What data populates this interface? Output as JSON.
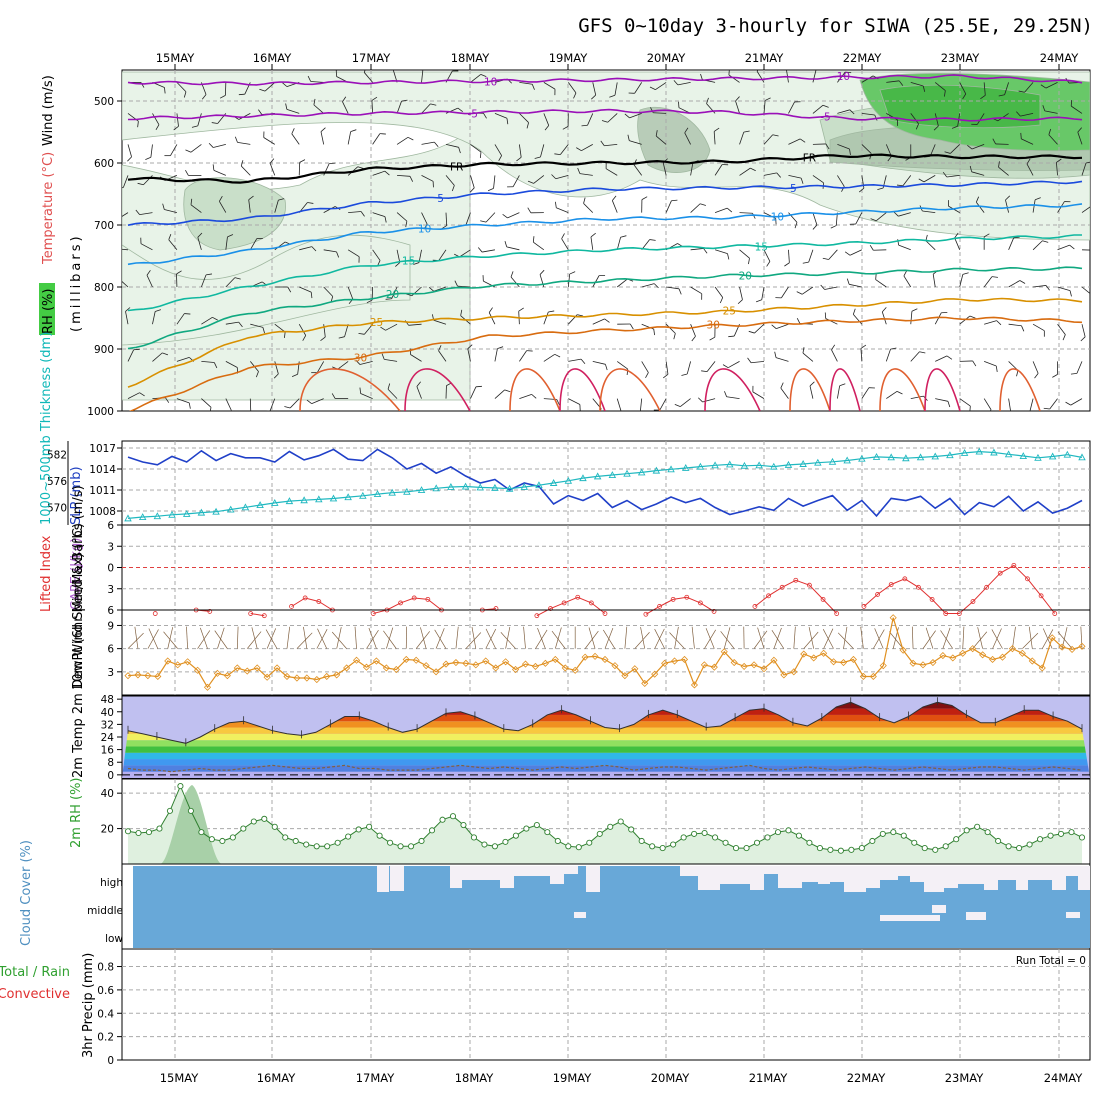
{
  "chart_data": {
    "type": "meteogram",
    "title": "GFS 0~10day 3-hourly for SIWA (25.5E, 29.25N)",
    "x_dates": [
      "15MAY",
      "16MAY",
      "17MAY",
      "18MAY",
      "19MAY",
      "20MAY",
      "21MAY",
      "22MAY",
      "23MAY",
      "24MAY"
    ],
    "panels": {
      "upper_air": {
        "ylabel_rh": "RH (%)",
        "ylabel_temp": "Temperature (°C)",
        "ylabel_wind": "Wind (m/s)",
        "ylabel_pressure": "(millibars)",
        "yticks": [
          500,
          600,
          700,
          800,
          900,
          1000
        ],
        "ylim": [
          450,
          1000
        ],
        "isotherms": [
          {
            "label": "-10",
            "color": "#9a10b8",
            "values": [
              470,
              472,
              470,
              468,
              466,
              464,
              462,
              460,
              470
            ]
          },
          {
            "label": "-5",
            "color": "#9a10b8",
            "values": [
              528,
              524,
              520,
              518,
              516,
              518,
              528,
              530,
              528
            ]
          },
          {
            "label": "FR",
            "color": "#000000",
            "values": [
              625,
              630,
              610,
              602,
              600,
              598,
              588,
              590,
              590
            ]
          },
          {
            "label": "5",
            "color": "#1a4adc",
            "values": [
              700,
              690,
              665,
              650,
              642,
              640,
              638,
              635,
              630
            ]
          },
          {
            "label": "10",
            "color": "#1a90e8",
            "values": [
              765,
              742,
              712,
              700,
              690,
              688,
              680,
              672,
              668
            ]
          },
          {
            "label": "15",
            "color": "#10b8a0",
            "values": [
              840,
              800,
              765,
              750,
              740,
              735,
              730,
              722,
              718
            ]
          },
          {
            "label": "20",
            "color": "#10a880",
            "values": [
              900,
              842,
              818,
              798,
              790,
              782,
              778,
              772,
              770
            ]
          },
          {
            "label": "25",
            "color": "#d89000",
            "values": [
              960,
              880,
              858,
              850,
              845,
              840,
              830,
              820,
              822
            ]
          },
          {
            "label": "30",
            "color": "#d86c10",
            "values": [
              1000,
              930,
              912,
              880,
              870,
              862,
              855,
              850,
              855
            ]
          }
        ]
      },
      "slp_thickness": {
        "ylabel_thk": "1000~500mb Thickness (dm)",
        "ylabel_slp": "SLP (mb)",
        "yticks_left": [
          570,
          576,
          582
        ],
        "yticks_right": [
          1008,
          1011,
          1014,
          1017
        ],
        "slp_values": [
          1015.7,
          1015,
          1014.6,
          1015.8,
          1015,
          1016.6,
          1015.2,
          1016.2,
          1015.6,
          1015.6,
          1015,
          1016.5,
          1015.3,
          1015.9,
          1016.8,
          1015.4,
          1015.2,
          1016.8,
          1015.6,
          1014,
          1014.8,
          1013.4,
          1014.3,
          1013,
          1012,
          1012.5,
          1011,
          1012,
          1011.5,
          1009,
          1010.2,
          1009.5,
          1010.5,
          1008.5,
          1009.5,
          1008.2,
          1009,
          1010,
          1009.2,
          1009.8,
          1008.5,
          1007.5,
          1008,
          1008.6,
          1008.1,
          1009.8,
          1008.7,
          1009.5,
          1010.2,
          1008.1,
          1009.5,
          1007.3,
          1009.8,
          1009.5,
          1010.1,
          1008.4,
          1009.8,
          1007.5,
          1009.2,
          1008.6,
          1010.1,
          1008,
          1009.3,
          1007.7,
          1008.4,
          1009.5
        ],
        "thk_values": [
          567.5,
          567.8,
          568,
          568.3,
          568.5,
          568.8,
          569,
          569.5,
          570,
          570.5,
          571,
          571.4,
          571.6,
          571.8,
          572,
          572.3,
          572.6,
          573,
          573.3,
          573.5,
          573.9,
          574.3,
          574.6,
          574.7,
          574.5,
          574.4,
          574.2,
          574.6,
          575,
          575.5,
          576,
          576.6,
          577,
          577.3,
          577.6,
          577.9,
          578.3,
          578.6,
          578.9,
          579.2,
          579.5,
          579.7,
          579.4,
          579.5,
          579.2,
          579.6,
          579.8,
          580.1,
          580.3,
          580.6,
          581,
          581.4,
          581.3,
          581.1,
          581.3,
          581.5,
          581.8,
          582.3,
          582.6,
          582.4,
          582,
          581.6,
          581.2,
          581.5,
          581.9,
          581.3
        ],
        "ylim_thk": [
          566,
          585
        ],
        "ylim_slp": [
          1006,
          1018
        ]
      },
      "lifted_cape": {
        "ylabel_li": "Lifted Index",
        "ylabel_cape": "CAPE (J/kg)",
        "yticks": [
          -6,
          -3,
          0,
          3,
          6
        ],
        "ylim": [
          -6,
          6
        ],
        "li_values": [
          7,
          7,
          6.5,
          7,
          7,
          6,
          6.2,
          7,
          7,
          6.5,
          6.8,
          7,
          5.5,
          4.3,
          4.8,
          6,
          7,
          7,
          6.5,
          6,
          5,
          4.3,
          4.5,
          6,
          7,
          7,
          6,
          5.8,
          7,
          7,
          6.8,
          5.8,
          5,
          4.2,
          5,
          6.5,
          7,
          7,
          6.6,
          5.5,
          4.5,
          4.2,
          5,
          6.2,
          7,
          7,
          5.5,
          4,
          2.8,
          1.8,
          2.5,
          4.5,
          6.5,
          7,
          5.5,
          3.8,
          2.4,
          1.6,
          2.8,
          4.5,
          6.5,
          6.5,
          4.8,
          2.8,
          0.8,
          -0.3,
          1.6,
          4,
          6.5,
          7,
          7
        ]
      },
      "wind10m": {
        "ylabel": "10m Wind Speed & Barbs (m/s)",
        "yticks": [
          3,
          6,
          9
        ],
        "ylim": [
          0,
          11
        ],
        "speed_values": [
          2.5,
          2.6,
          2.5,
          2.4,
          4.4,
          3.9,
          4.3,
          3.2,
          1,
          2.8,
          2.5,
          3.5,
          3.1,
          3.5,
          2.3,
          3.5,
          2.4,
          2.2,
          2.2,
          2,
          2.4,
          2.6,
          3.5,
          4.5,
          3.6,
          4.4,
          3.5,
          3.3,
          4.6,
          4.5,
          3.8,
          3,
          4,
          4.2,
          4.1,
          3.9,
          4.4,
          3.5,
          4.3,
          3.3,
          4,
          3.7,
          4.1,
          4.6,
          3.5,
          3.2,
          4.9,
          5,
          4.6,
          3.8,
          2.5,
          3.4,
          1.5,
          2.7,
          4.1,
          4.4,
          4.6,
          1.3,
          3.9,
          3.6,
          5.6,
          4.2,
          3.7,
          3.9,
          3.4,
          4.5,
          2.6,
          3,
          5.3,
          4.8,
          5.4,
          4.3,
          4.2,
          4.6,
          2.4,
          2.4,
          3.8,
          10,
          5.8,
          4.1,
          3.9,
          4.2,
          5.1,
          4.8,
          5.4,
          6,
          5.2,
          4.6,
          4.9,
          6,
          5.4,
          4.4,
          3.5,
          7.4,
          6.2,
          5.9,
          6.3
        ]
      },
      "temp2m": {
        "ylabel": "2m Temp 2m DewPt (6hr Min/Max) (°C)",
        "yticks": [
          0,
          8,
          16,
          24,
          32,
          40,
          48
        ],
        "ylim": [
          -2,
          50
        ],
        "temp_values": [
          28,
          26,
          24,
          22,
          20,
          24,
          29,
          33,
          34,
          31,
          28,
          26,
          25,
          27,
          32,
          37,
          37,
          34,
          30,
          27,
          29,
          34,
          39,
          40,
          37,
          33,
          29,
          28,
          32,
          38,
          41,
          38,
          34,
          30,
          29,
          32,
          38,
          41,
          38,
          34,
          30,
          31,
          36,
          41,
          42,
          38,
          33,
          31,
          36,
          43,
          46,
          42,
          36,
          33,
          37,
          43,
          46,
          44,
          38,
          33,
          33,
          37,
          41,
          41,
          37,
          34,
          29
        ],
        "dewpt_values": [
          4,
          3,
          3,
          2,
          3,
          4,
          3,
          3,
          4,
          5,
          6,
          5,
          4,
          4,
          5,
          6,
          4,
          4,
          3,
          3,
          3,
          4,
          5,
          6,
          5,
          4,
          5,
          4,
          3,
          4,
          5,
          4,
          5,
          6,
          5,
          3,
          4,
          5,
          5,
          4,
          3,
          4,
          5,
          6,
          4,
          3,
          4,
          5,
          4,
          3,
          4,
          5,
          4,
          3,
          4,
          5,
          4,
          3,
          4,
          5,
          5,
          4,
          3,
          4,
          5,
          4,
          3
        ]
      },
      "rh2m": {
        "ylabel": "2m RH (%)",
        "yticks": [
          20,
          40
        ],
        "ylim": [
          0,
          48
        ],
        "rh_values": [
          18.5,
          17.5,
          18,
          20,
          30,
          44,
          30,
          18,
          14,
          13,
          15,
          20,
          24,
          25.5,
          21,
          15,
          13,
          11,
          10,
          10,
          12,
          15.5,
          19.5,
          21,
          16,
          12,
          10,
          10,
          13,
          19,
          25,
          27,
          22,
          15,
          11,
          10,
          12.5,
          16,
          20,
          22,
          18,
          13,
          10,
          9.5,
          12,
          17,
          21,
          24,
          19.5,
          13,
          10,
          9,
          11,
          15,
          17,
          17.5,
          15,
          12,
          9,
          9,
          12,
          15,
          18,
          19,
          16,
          12,
          9,
          8,
          7.5,
          8,
          9,
          13,
          17,
          18,
          16,
          12,
          9,
          8,
          10,
          14,
          19,
          21,
          18,
          13,
          10,
          9,
          11,
          14,
          16,
          17,
          18,
          15
        ]
      },
      "cloud": {
        "ylabel": "Cloud Cover (%)",
        "levels": [
          "high",
          "middle",
          "low"
        ]
      },
      "precip": {
        "ylabel_total": "Total / Rain",
        "ylabel_conv": "Convective",
        "ylabel_axis": "3hr Precip (mm)",
        "yticks": [
          "0",
          "0.2",
          "0.4",
          "0.6",
          "0.8"
        ],
        "ylim": [
          0,
          0.95
        ],
        "run_total_label": "Run Total = 0"
      }
    }
  }
}
